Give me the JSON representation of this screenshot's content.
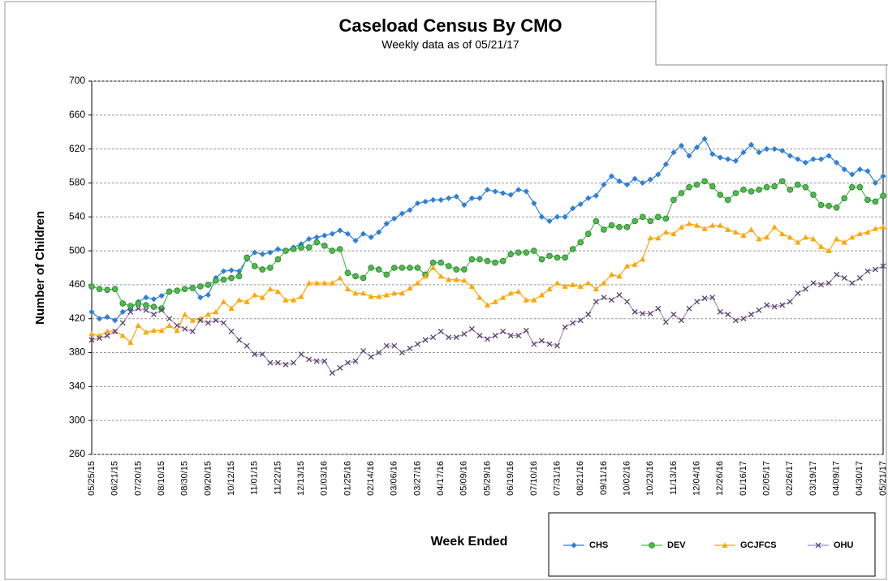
{
  "chart_data": {
    "type": "line",
    "title": "Caseload Census By CMO",
    "subtitle": "Weekly data as of 05/21/17",
    "x_label": "Week Ended",
    "y_label": "Number of Children",
    "categories": [
      "05/25/15",
      null,
      null,
      "06/21/15",
      null,
      null,
      "07/20/15",
      null,
      null,
      "08/10/15",
      null,
      null,
      "08/30/15",
      null,
      null,
      "09/20/15",
      null,
      null,
      "10/12/15",
      null,
      null,
      "11/01/15",
      null,
      null,
      "11/22/15",
      null,
      null,
      "12/13/15",
      null,
      null,
      "01/03/16",
      null,
      null,
      "01/25/16",
      null,
      null,
      "02/14/16",
      null,
      null,
      "03/06/16",
      null,
      null,
      "03/27/16",
      null,
      null,
      "04/17/16",
      null,
      null,
      "05/09/16",
      null,
      null,
      "05/29/16",
      null,
      null,
      "06/19/16",
      null,
      null,
      "07/10/16",
      null,
      null,
      "07/31/16",
      null,
      null,
      "08/21/16",
      null,
      null,
      "09/11/16",
      null,
      null,
      "10/02/16",
      null,
      null,
      "10/23/16",
      null,
      null,
      "11/13/16",
      null,
      null,
      "12/04/16",
      null,
      null,
      "12/26/16",
      null,
      null,
      "01/16/17",
      null,
      null,
      "02/05/17",
      null,
      null,
      "02/26/17",
      null,
      null,
      "03/19/17",
      null,
      null,
      "04/09/17",
      null,
      null,
      "04/30/17",
      null,
      null,
      "05/21/17"
    ],
    "ylim": [
      260,
      700
    ],
    "yticks": [
      260,
      300,
      340,
      380,
      420,
      460,
      500,
      540,
      580,
      620,
      660,
      700
    ],
    "grid": true,
    "series": [
      {
        "name": "CHS",
        "color": "#2e7fd6",
        "marker": "diamond",
        "values": [
          428,
          420,
          422,
          418,
          428,
          432,
          440,
          445,
          443,
          447,
          452,
          453,
          455,
          457,
          445,
          448,
          468,
          476,
          477,
          476,
          490,
          498,
          496,
          498,
          502,
          500,
          504,
          508,
          514,
          516,
          518,
          520,
          524,
          520,
          512,
          520,
          516,
          522,
          532,
          538,
          544,
          548,
          556,
          558,
          560,
          560,
          562,
          564,
          554,
          562,
          562,
          572,
          570,
          568,
          566,
          572,
          570,
          556,
          540,
          535,
          540,
          540,
          550,
          555,
          562,
          565,
          578,
          588,
          582,
          578,
          585,
          580,
          584,
          590,
          602,
          616,
          624,
          612,
          622,
          632,
          614,
          610,
          608,
          606,
          616,
          625,
          616,
          620,
          620,
          618,
          612,
          608,
          604,
          608,
          608,
          612,
          604,
          596,
          590,
          596,
          594,
          580,
          588
        ]
      },
      {
        "name": "DEV",
        "color": "#4cbb4c",
        "marker": "circle",
        "values": [
          458,
          455,
          454,
          455,
          438,
          435,
          438,
          436,
          434,
          432,
          452,
          453,
          455,
          456,
          458,
          460,
          465,
          466,
          468,
          470,
          492,
          482,
          478,
          480,
          490,
          500,
          502,
          504,
          504,
          510,
          506,
          500,
          502,
          474,
          470,
          468,
          480,
          478,
          472,
          480,
          480,
          480,
          480,
          472,
          486,
          486,
          482,
          478,
          478,
          490,
          490,
          488,
          486,
          488,
          496,
          498,
          498,
          500,
          490,
          494,
          492,
          492,
          502,
          510,
          520,
          535,
          525,
          530,
          528,
          528,
          535,
          540,
          535,
          540,
          538,
          560,
          568,
          575,
          578,
          582,
          576,
          566,
          560,
          568,
          572,
          570,
          572,
          575,
          576,
          582,
          572,
          578,
          575,
          566,
          554,
          553,
          551,
          562,
          575,
          575,
          560,
          558,
          565
        ]
      },
      {
        "name": "GCJFCS",
        "color": "#ffa500",
        "marker": "triangle",
        "values": [
          402,
          400,
          405,
          405,
          400,
          392,
          412,
          404,
          406,
          406,
          412,
          406,
          425,
          418,
          420,
          425,
          428,
          440,
          432,
          442,
          440,
          448,
          445,
          455,
          452,
          442,
          442,
          446,
          462,
          462,
          462,
          462,
          468,
          455,
          450,
          450,
          446,
          446,
          448,
          450,
          450,
          456,
          462,
          470,
          480,
          470,
          466,
          466,
          465,
          458,
          445,
          436,
          440,
          445,
          450,
          452,
          442,
          442,
          448,
          455,
          462,
          458,
          460,
          458,
          462,
          455,
          462,
          472,
          470,
          482,
          484,
          490,
          515,
          515,
          522,
          520,
          528,
          532,
          530,
          526,
          530,
          530,
          525,
          522,
          518,
          525,
          514,
          516,
          528,
          520,
          516,
          510,
          516,
          514,
          505,
          500,
          514,
          510,
          516,
          520,
          522,
          526,
          528
        ]
      },
      {
        "name": "OHU",
        "color": "#a98bcc",
        "marker": "x",
        "values": [
          395,
          397,
          400,
          405,
          415,
          428,
          432,
          430,
          425,
          430,
          420,
          412,
          408,
          405,
          418,
          415,
          418,
          415,
          405,
          395,
          388,
          378,
          378,
          368,
          368,
          366,
          368,
          378,
          372,
          370,
          370,
          356,
          362,
          368,
          370,
          382,
          375,
          380,
          388,
          388,
          380,
          385,
          390,
          395,
          398,
          405,
          398,
          398,
          402,
          408,
          400,
          396,
          400,
          405,
          400,
          400,
          406,
          390,
          394,
          390,
          388,
          410,
          415,
          418,
          425,
          440,
          445,
          442,
          448,
          440,
          428,
          426,
          426,
          432,
          416,
          425,
          418,
          432,
          440,
          444,
          445,
          428,
          425,
          418,
          420,
          425,
          430,
          436,
          434,
          436,
          440,
          450,
          455,
          462,
          460,
          462,
          472,
          468,
          462,
          468,
          476,
          478,
          482
        ]
      }
    ]
  }
}
